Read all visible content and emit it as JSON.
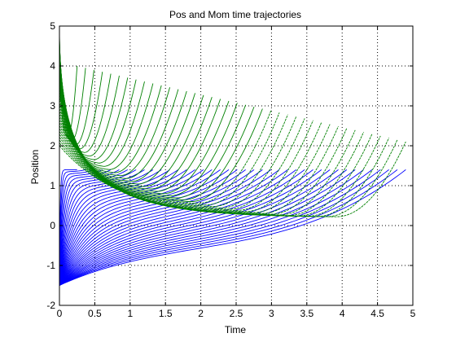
{
  "chart_data": {
    "type": "line",
    "title": "Pos and Mom time trajectories",
    "xlabel": "Time",
    "ylabel": "Position",
    "xlim": [
      0,
      5
    ],
    "ylim": [
      -2,
      5
    ],
    "xticks": [
      0,
      0.5,
      1,
      1.5,
      2,
      2.5,
      3,
      3.5,
      4,
      4.5,
      5
    ],
    "yticks": [
      -2,
      -1,
      0,
      1,
      2,
      3,
      4,
      5
    ],
    "xtick_labels": [
      "0",
      "0.5",
      "1",
      "1.5",
      "2",
      "2.5",
      "3",
      "3.5",
      "4",
      "4.5",
      "5"
    ],
    "ytick_labels": [
      "-2",
      "-1",
      "0",
      "1",
      "2",
      "3",
      "4",
      "5"
    ],
    "grid": true,
    "family_count": 40,
    "series": [
      {
        "color": "#0000ff",
        "start": [
          0,
          -1.5
        ],
        "end_range_x": [
          0.25,
          4.9
        ],
        "end_range_y": [
          1.4,
          1.4
        ],
        "sample_lower_envelope": {
          "x": [
            0,
            0.2,
            0.5,
            1,
            2,
            3,
            4,
            4.6,
            4.9
          ],
          "y": [
            -1.5,
            -0.9,
            -0.55,
            -0.4,
            -0.25,
            -0.1,
            0.25,
            0.8,
            1.4
          ]
        }
      },
      {
        "color": "#008000",
        "start_range_y": [
          4.8,
          2.0
        ],
        "end_range_x": [
          0.25,
          4.9
        ],
        "end_range_y": [
          4.0,
          2.1
        ],
        "sample_lower_envelope": {
          "x": [
            0,
            0.3,
            0.6,
            1,
            2,
            3,
            3.9
          ],
          "y": [
            2.3,
            1.5,
            1.1,
            0.85,
            0.5,
            0.3,
            0.22
          ]
        }
      }
    ]
  }
}
